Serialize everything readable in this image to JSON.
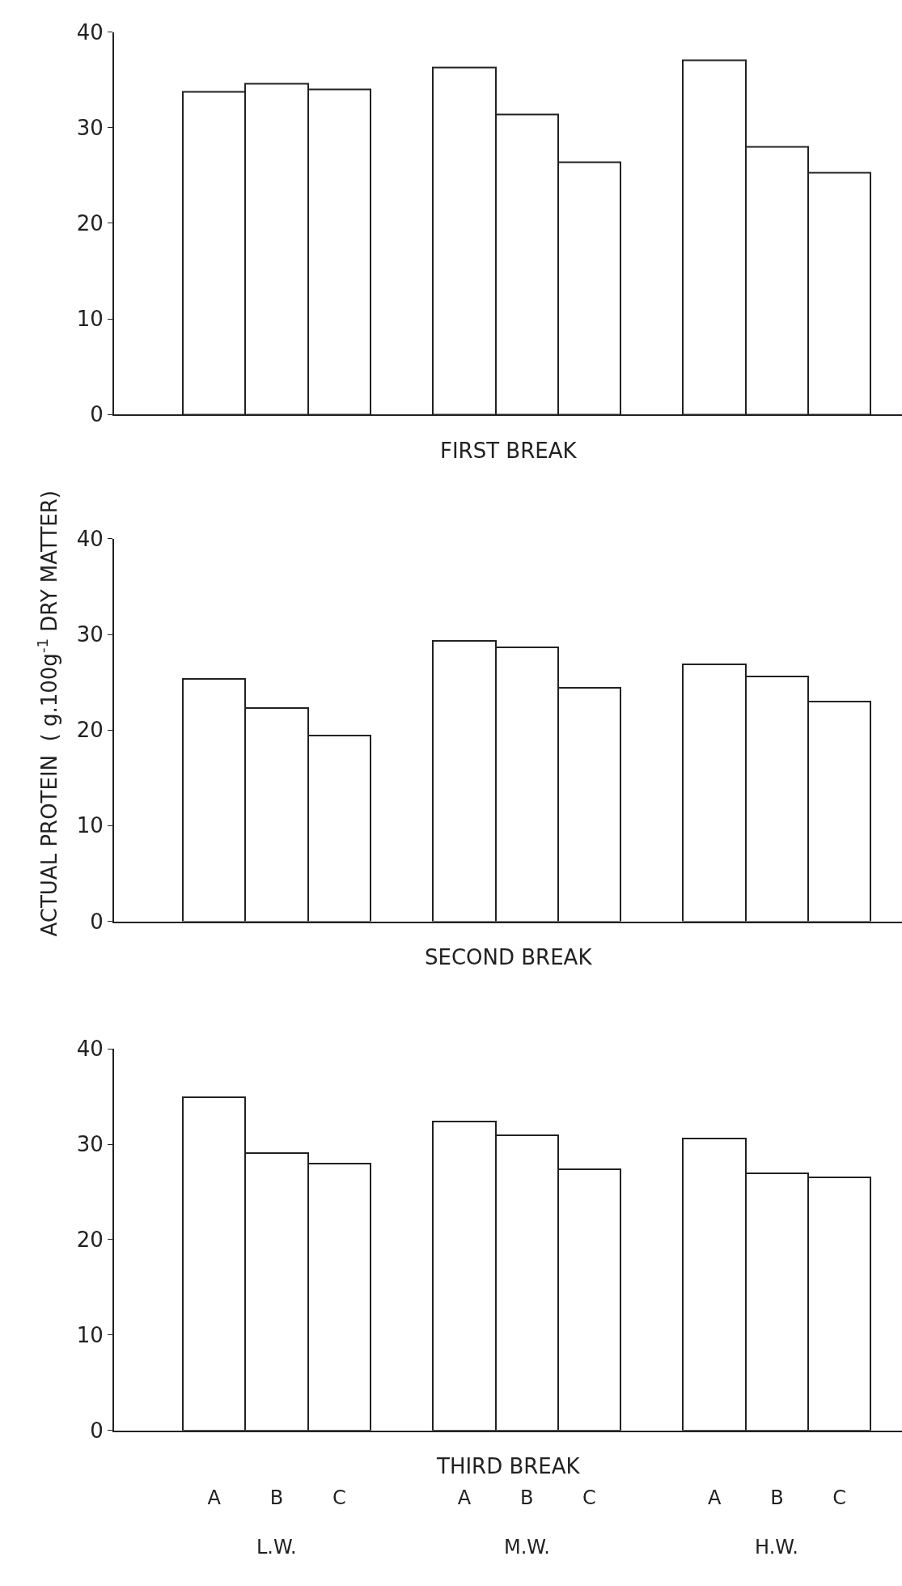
{
  "chart_data": [
    {
      "type": "bar",
      "xlabel": "FIRST BREAK",
      "categories": [
        null,
        null,
        null,
        null,
        null,
        null,
        null,
        null,
        null
      ],
      "color": "#ffffff",
      "values": [
        33.7,
        34.6,
        34.0,
        36.3,
        31.4,
        26.4,
        37.0,
        28.0,
        25.3
      ],
      "ylim": [
        0,
        40
      ],
      "yticks": [
        0,
        10,
        20,
        30,
        40
      ],
      "tick_labels": "y"
    },
    {
      "type": "bar",
      "xlabel": "SECOND BREAK",
      "ylabel": "ACTUAL PROTEIN  ( g.100g$^{-1}$ DRY MATTER)",
      "categories": [
        null,
        null,
        null,
        null,
        null,
        null,
        null,
        null,
        null
      ],
      "color": "#ffffff",
      "values": [
        25.4,
        22.3,
        19.4,
        29.3,
        28.7,
        24.4,
        26.9,
        25.6,
        23.0
      ],
      "ylim": [
        0,
        40
      ],
      "yticks": [
        0,
        10,
        20,
        30,
        40
      ],
      "tick_labels": "y"
    },
    {
      "type": "bar",
      "xlabel": "THIRD BREAK",
      "categories": [
        "A",
        "B",
        "C",
        "A",
        "B",
        "C",
        "A",
        "B",
        "C"
      ],
      "color": "#ffffff",
      "values": [
        34.9,
        29.1,
        28.0,
        32.4,
        30.9,
        27.4,
        30.6,
        26.9,
        26.5
      ],
      "ylim": [
        0,
        40
      ],
      "yticks": [
        0,
        10,
        20,
        30,
        40
      ],
      "annotations": [
        "L.W.",
        "M.W.",
        "H.W."
      ]
    }
  ]
}
